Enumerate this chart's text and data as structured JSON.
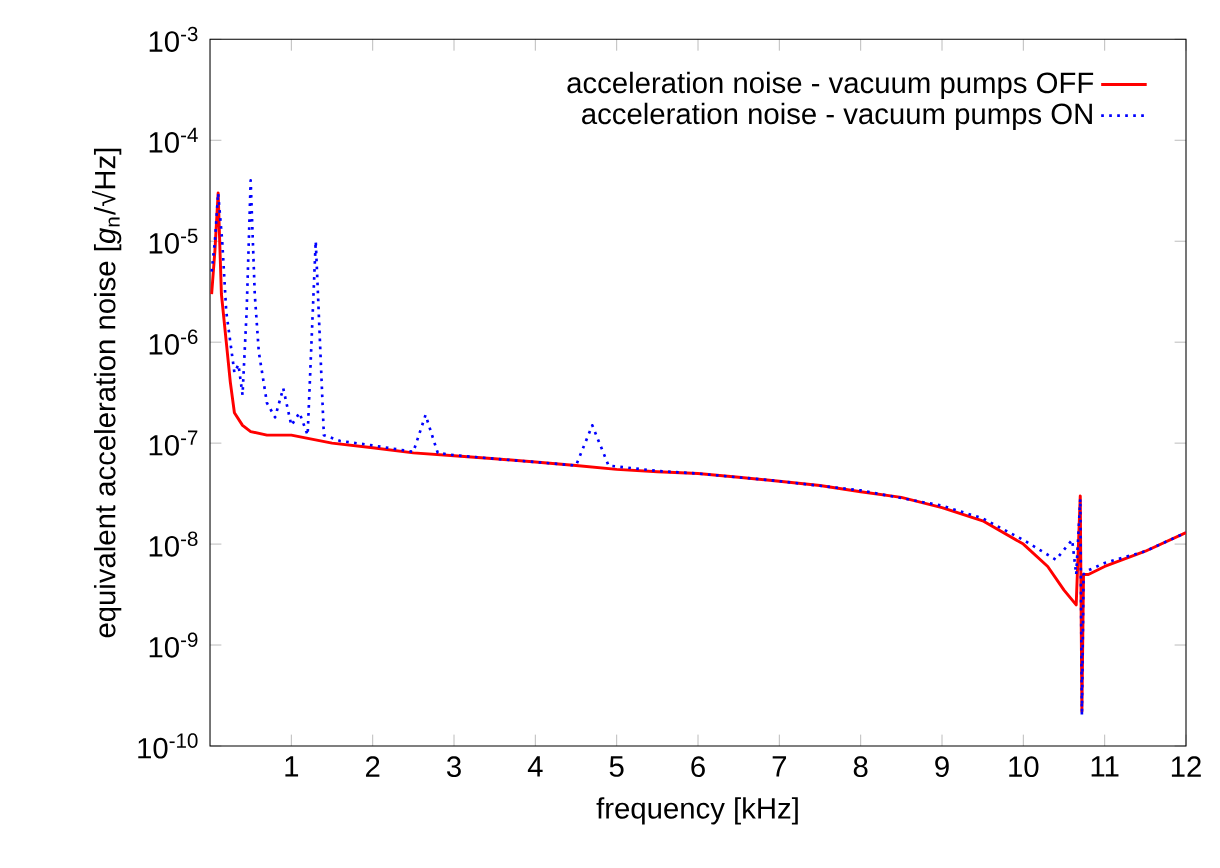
{
  "chart_data": {
    "type": "line",
    "xlabel": "frequency [kHz]",
    "ylabel": "equivalent acceleration noise [*g*$_{n}$/√Hz]",
    "xlim": [
      0,
      12
    ],
    "ylim": [
      1e-10,
      0.001
    ],
    "log": "y",
    "grid": false,
    "legend": "top right",
    "marker": "none",
    "xticks": [
      1,
      2,
      3,
      4,
      5,
      6,
      7,
      8,
      9,
      10,
      11,
      12
    ],
    "yticks": [
      {
        "value": 1e-10,
        "label": "10$^{-10}$"
      },
      {
        "value": 1e-09,
        "label": "10$^{-9}$"
      },
      {
        "value": 1e-08,
        "label": "10$^{-8}$"
      },
      {
        "value": 1e-07,
        "label": "10$^{-7}$"
      },
      {
        "value": 1e-06,
        "label": "10$^{-6}$"
      },
      {
        "value": 1e-05,
        "label": "10$^{-5}$"
      },
      {
        "value": 0.0001,
        "label": "10$^{-4}$"
      },
      {
        "value": 0.001,
        "label": "10$^{-3}$"
      }
    ],
    "series": [
      {
        "name": "acceleration noise - vacuum pumps OFF",
        "color": "#ff0000",
        "line_style": "solid",
        "x": [
          0.02,
          0.06,
          0.1,
          0.14,
          0.2,
          0.25,
          0.3,
          0.4,
          0.5,
          0.7,
          1.0,
          1.5,
          2.0,
          2.5,
          3.0,
          3.5,
          4.0,
          4.5,
          5.0,
          5.5,
          6.0,
          6.5,
          7.0,
          7.5,
          8.0,
          8.5,
          9.0,
          9.5,
          10.0,
          10.3,
          10.5,
          10.65,
          10.7,
          10.72,
          10.74,
          10.8,
          11.0,
          11.5,
          12.0
        ],
        "values": [
          3e-06,
          8e-06,
          3e-05,
          3e-06,
          1e-06,
          4e-07,
          2e-07,
          1.5e-07,
          1.3e-07,
          1.2e-07,
          1.2e-07,
          1e-07,
          9e-08,
          8e-08,
          7.5e-08,
          7e-08,
          6.5e-08,
          6e-08,
          5.5e-08,
          5.2e-08,
          5e-08,
          4.6e-08,
          4.2e-08,
          3.8e-08,
          3.3e-08,
          2.9e-08,
          2.3e-08,
          1.7e-08,
          1e-08,
          6e-09,
          3.5e-09,
          2.5e-09,
          3e-08,
          2.2e-10,
          5e-09,
          5e-09,
          6e-09,
          8.5e-09,
          1.3e-08
        ]
      },
      {
        "name": "acceleration noise - vacuum pumps ON",
        "color": "#0000ff",
        "line_style": "dotted",
        "x": [
          0.02,
          0.06,
          0.1,
          0.15,
          0.2,
          0.3,
          0.35,
          0.4,
          0.45,
          0.5,
          0.55,
          0.6,
          0.7,
          0.8,
          0.9,
          1.0,
          1.1,
          1.2,
          1.3,
          1.4,
          1.6,
          2.0,
          2.5,
          2.65,
          2.8,
          3.0,
          3.5,
          4.0,
          4.5,
          4.7,
          4.9,
          5.5,
          6.0,
          7.0,
          8.0,
          9.0,
          9.5,
          10.0,
          10.4,
          10.6,
          10.65,
          10.7,
          10.72,
          10.74,
          10.8,
          11.0,
          11.5,
          12.0
        ],
        "values": [
          5e-06,
          1e-05,
          3e-05,
          1e-05,
          2e-06,
          5e-07,
          6e-07,
          3e-07,
          2e-06,
          4e-05,
          3e-06,
          8e-07,
          2.5e-07,
          1.8e-07,
          3.5e-07,
          1.5e-07,
          2e-07,
          1.2e-07,
          1e-05,
          1.2e-07,
          1.05e-07,
          9.5e-08,
          8.2e-08,
          1.9e-07,
          8e-08,
          7.6e-08,
          7e-08,
          6.5e-08,
          6e-08,
          1.5e-07,
          6e-08,
          5.3e-08,
          5e-08,
          4.2e-08,
          3.4e-08,
          2.4e-08,
          1.8e-08,
          1.1e-08,
          7e-09,
          1.1e-08,
          5e-09,
          2.8e-08,
          2e-10,
          5e-09,
          5.5e-09,
          6.5e-09,
          8.5e-09,
          1.3e-08
        ]
      }
    ]
  }
}
